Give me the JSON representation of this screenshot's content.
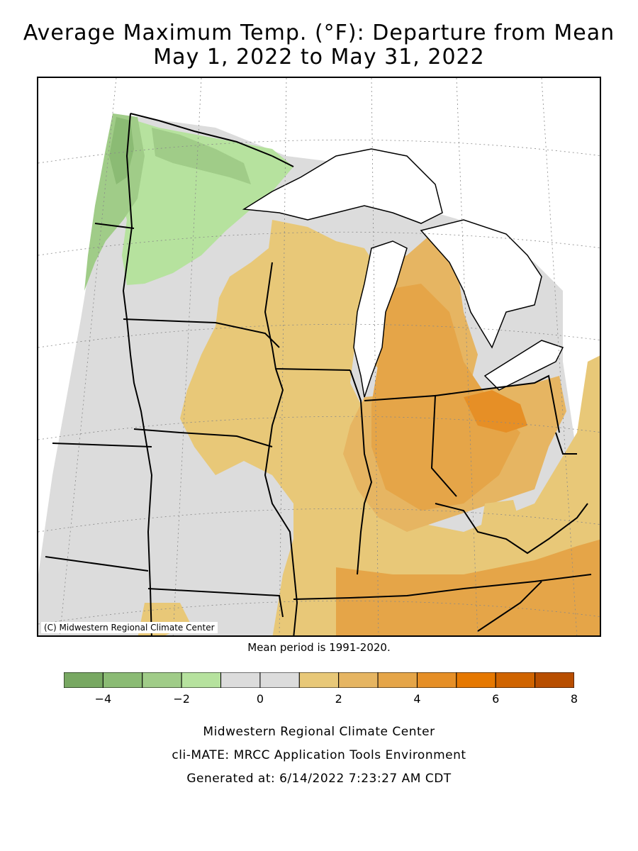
{
  "title_line1": "Average Maximum Temp. (°F): Departure from Mean",
  "title_line2": "May 1, 2022 to May 31, 2022",
  "copyright": "(C) Midwestern Regional Climate Center",
  "mean_period": "Mean period is 1991-2020.",
  "legend": {
    "bins": [
      {
        "from": -5,
        "to": -4,
        "color": "#78a862"
      },
      {
        "from": -4,
        "to": -3,
        "color": "#8bbb74"
      },
      {
        "from": -3,
        "to": -2,
        "color": "#a0cc88"
      },
      {
        "from": -2,
        "to": -1,
        "color": "#b6e29e"
      },
      {
        "from": -1,
        "to": 0,
        "color": "#dcdcdc"
      },
      {
        "from": 0,
        "to": 1,
        "color": "#dcdcdc"
      },
      {
        "from": 1,
        "to": 2,
        "color": "#e8c878"
      },
      {
        "from": 2,
        "to": 3,
        "color": "#e6b562"
      },
      {
        "from": 3,
        "to": 4,
        "color": "#e5a548"
      },
      {
        "from": 4,
        "to": 5,
        "color": "#e68f26"
      },
      {
        "from": 5,
        "to": 6,
        "color": "#e67800"
      },
      {
        "from": 6,
        "to": 7,
        "color": "#d06400"
      },
      {
        "from": 7,
        "to": 8,
        "color": "#b84e00"
      }
    ],
    "tick_labels": [
      "-4",
      "-2",
      "0",
      "2",
      "4",
      "6",
      "8"
    ]
  },
  "footer": {
    "line1": "Midwestern Regional Climate Center",
    "line2": "cli-MATE: MRCC Application Tools Environment",
    "line3": "Generated at: 6/14/2022 7:23:27 AM CDT"
  }
}
